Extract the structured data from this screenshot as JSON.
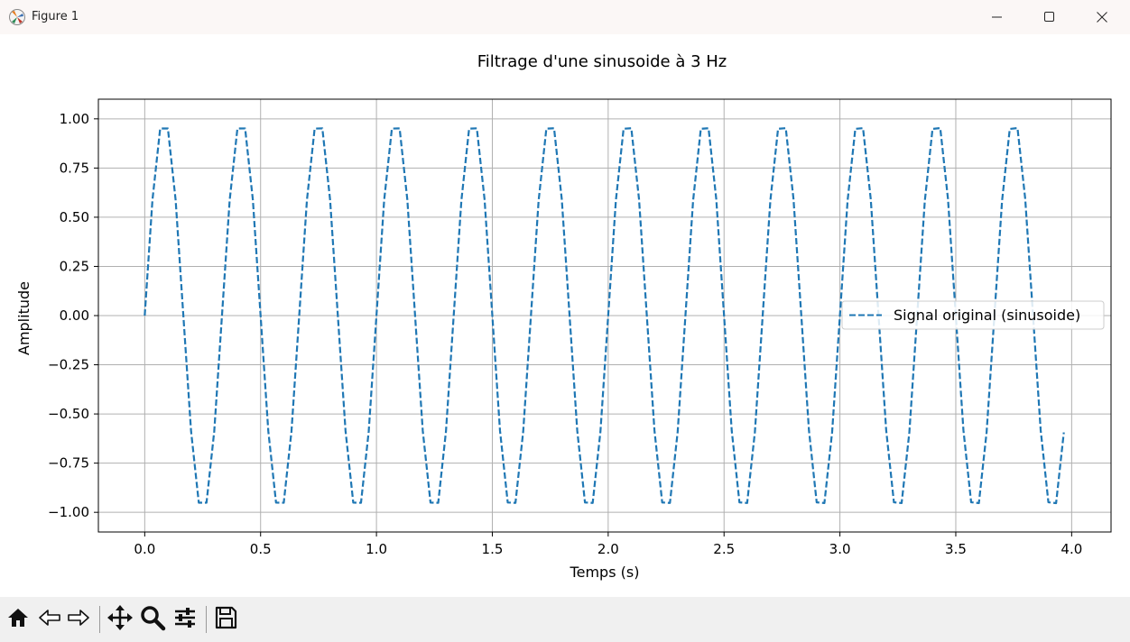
{
  "window": {
    "title": "Figure 1",
    "icons": {
      "app": "matplotlib-figure-icon",
      "minimize": "minimize-icon",
      "maximize": "maximize-icon",
      "close": "close-icon"
    }
  },
  "toolbar": {
    "buttons": [
      {
        "name": "home-button",
        "icon": "home-icon"
      },
      {
        "name": "back-button",
        "icon": "back-arrow-icon"
      },
      {
        "name": "forward-button",
        "icon": "forward-arrow-icon"
      },
      {
        "name": "pan-button",
        "icon": "move-icon"
      },
      {
        "name": "zoom-button",
        "icon": "magnifier-icon"
      },
      {
        "name": "subplots-button",
        "icon": "sliders-icon"
      },
      {
        "name": "save-button",
        "icon": "save-icon"
      }
    ],
    "status": ""
  },
  "chart_data": {
    "type": "line",
    "title": "Filtrage d'une sinusoide à 3 Hz",
    "xlabel": "Temps (s)",
    "ylabel": "Amplitude",
    "xlim": [
      -0.2,
      4.17
    ],
    "ylim": [
      -1.1,
      1.1
    ],
    "xticks": [
      0.0,
      0.5,
      1.0,
      1.5,
      2.0,
      2.5,
      3.0,
      3.5,
      4.0
    ],
    "xtick_labels": [
      "0.0",
      "0.5",
      "1.0",
      "1.5",
      "2.0",
      "2.5",
      "3.0",
      "3.5",
      "4.0"
    ],
    "yticks": [
      1.0,
      0.75,
      0.5,
      0.25,
      0.0,
      -0.25,
      -0.5,
      -0.75,
      -1.0
    ],
    "ytick_labels": [
      "1.00",
      "0.75",
      "0.50",
      "0.25",
      "0.00",
      "−0.25",
      "−0.50",
      "−0.75",
      "−1.00"
    ],
    "grid": true,
    "legend_position": "center-right",
    "series": [
      {
        "name": "Signal original (sinusoide)",
        "color": "#1f77b4",
        "linestyle": "dashed",
        "frequency_hz": 3,
        "amplitude": 1.0,
        "x_start": 0.0,
        "x_step": 0.03333,
        "n_points": 120
      }
    ]
  }
}
